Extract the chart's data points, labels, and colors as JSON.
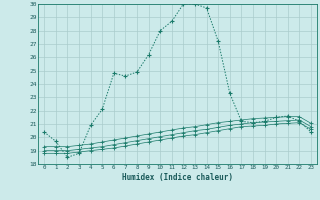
{
  "xlabel": "Humidex (Indice chaleur)",
  "bg_color": "#cceaea",
  "grid_color": "#aacccc",
  "line_color": "#1a7a6a",
  "xlim": [
    -0.5,
    23.5
  ],
  "ylim": [
    18,
    30
  ],
  "yticks": [
    18,
    19,
    20,
    21,
    22,
    23,
    24,
    25,
    26,
    27,
    28,
    29,
    30
  ],
  "xticks": [
    0,
    1,
    2,
    3,
    4,
    5,
    6,
    7,
    8,
    9,
    10,
    11,
    12,
    13,
    14,
    15,
    16,
    17,
    18,
    19,
    20,
    21,
    22,
    23
  ],
  "curve1_x": [
    0,
    1,
    2,
    3,
    4,
    5,
    6,
    7,
    8,
    9,
    10,
    11,
    12,
    13,
    14,
    15,
    16,
    17,
    18,
    19,
    20,
    21,
    22,
    23
  ],
  "curve1_y": [
    20.4,
    19.7,
    18.5,
    18.8,
    20.9,
    22.1,
    24.8,
    24.6,
    24.9,
    26.2,
    28.0,
    28.7,
    30.0,
    30.0,
    29.7,
    27.2,
    23.3,
    21.2,
    21.1,
    21.2,
    21.5,
    21.6,
    21.2,
    20.4
  ],
  "curve2_x": [
    0,
    1,
    2,
    3,
    4,
    5,
    6,
    7,
    8,
    9,
    10,
    11,
    12,
    13,
    14,
    15,
    16,
    17,
    18,
    19,
    20,
    21,
    22,
    23
  ],
  "curve2_y": [
    18.8,
    18.8,
    18.8,
    18.9,
    19.0,
    19.1,
    19.2,
    19.35,
    19.5,
    19.65,
    19.8,
    19.95,
    20.1,
    20.2,
    20.35,
    20.5,
    20.65,
    20.8,
    20.85,
    20.9,
    21.0,
    21.05,
    21.1,
    20.6
  ],
  "curve3_x": [
    0,
    1,
    2,
    3,
    4,
    5,
    6,
    7,
    8,
    9,
    10,
    11,
    12,
    13,
    14,
    15,
    16,
    17,
    18,
    19,
    20,
    21,
    22,
    23
  ],
  "curve3_y": [
    19.0,
    19.0,
    19.0,
    19.1,
    19.2,
    19.3,
    19.45,
    19.6,
    19.75,
    19.9,
    20.05,
    20.2,
    20.35,
    20.5,
    20.6,
    20.75,
    20.9,
    21.0,
    21.1,
    21.15,
    21.2,
    21.25,
    21.3,
    20.8
  ],
  "curve4_x": [
    0,
    1,
    2,
    3,
    4,
    5,
    6,
    7,
    8,
    9,
    10,
    11,
    12,
    13,
    14,
    15,
    16,
    17,
    18,
    19,
    20,
    21,
    22,
    23
  ],
  "curve4_y": [
    19.3,
    19.3,
    19.3,
    19.4,
    19.5,
    19.65,
    19.8,
    19.95,
    20.1,
    20.25,
    20.4,
    20.55,
    20.7,
    20.8,
    20.95,
    21.1,
    21.2,
    21.3,
    21.4,
    21.45,
    21.5,
    21.55,
    21.55,
    21.05
  ]
}
